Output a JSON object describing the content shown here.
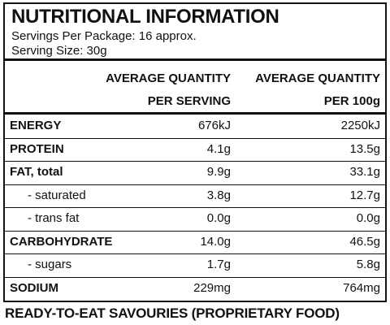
{
  "title": "NUTRITIONAL INFORMATION",
  "servings_per_package": "Servings Per Package: 16 approx.",
  "serving_size": "Serving Size: 30g",
  "table": {
    "columns": [
      [
        "AVERAGE QUANTITY",
        "PER SERVING"
      ],
      [
        "AVERAGE QUANTITY",
        "PER 100g"
      ]
    ],
    "rows": [
      [
        "ENERGY",
        "676kJ",
        "2250kJ"
      ],
      [
        "PROTEIN",
        "4.1g",
        "13.5g"
      ],
      [
        "FAT, total",
        "9.9g",
        "33.1g"
      ],
      [
        "- saturated",
        "3.8g",
        "12.7g"
      ],
      [
        "- trans fat",
        "0.0g",
        "0.0g"
      ],
      [
        "CARBOHYDRATE",
        "14.0g",
        "46.5g"
      ],
      [
        "- sugars",
        "1.7g",
        "5.8g"
      ],
      [
        "SODIUM",
        "229mg",
        "764mg"
      ]
    ]
  },
  "footer": "READY-TO-EAT SAVOURIES (PROPRIETARY FOOD)"
}
